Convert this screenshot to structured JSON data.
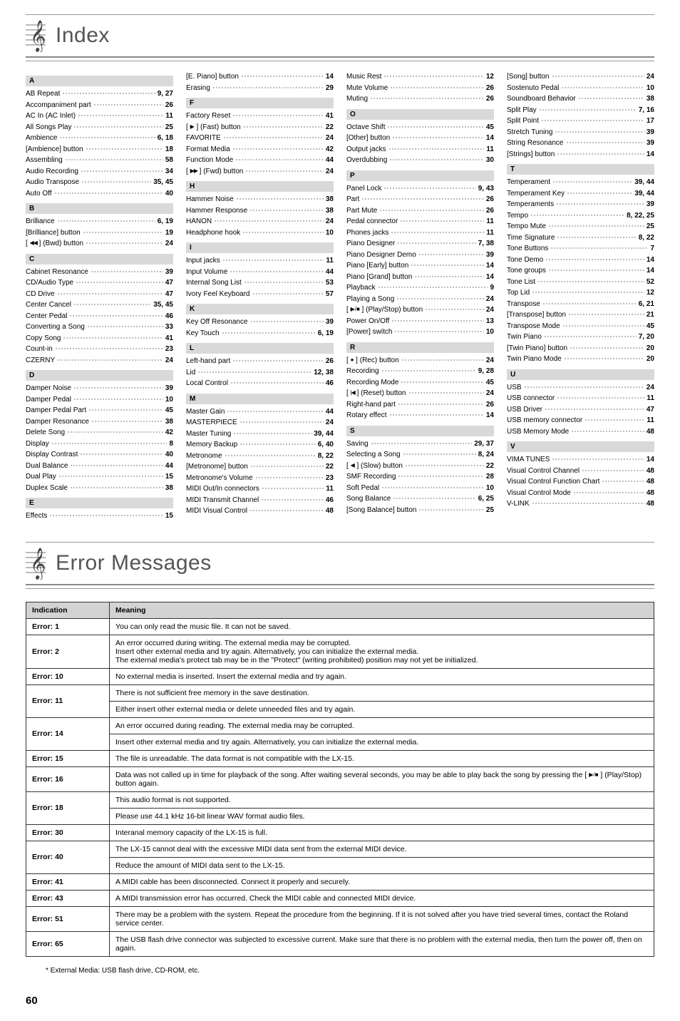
{
  "headings": {
    "index": "Index",
    "errors": "Error Messages"
  },
  "pageNumber": "60",
  "footnote": "*  External Media: USB flash drive, CD-ROM, etc.",
  "glyphs": {
    "tri_l": "◀",
    "tri_r": "▶",
    "rec": "●",
    "stop": "■",
    "bar": "|"
  },
  "index": [
    [
      {
        "type": "letter",
        "t": "A"
      },
      {
        "t": "AB Repeat",
        "p": "9, 27"
      },
      {
        "t": "Accompaniment part",
        "p": "26"
      },
      {
        "t": "AC In (AC Inlet)",
        "p": "11"
      },
      {
        "t": "All Songs Play",
        "p": "25"
      },
      {
        "t": "Ambience",
        "p": "6, 18"
      },
      {
        "t": "[Ambience] button",
        "p": "18"
      },
      {
        "t": "Assembling",
        "p": "58"
      },
      {
        "t": "Audio Recording",
        "p": "34"
      },
      {
        "t": "Audio Transpose",
        "p": "35, 45"
      },
      {
        "t": "Auto Off",
        "p": "40"
      },
      {
        "type": "letter",
        "t": "B"
      },
      {
        "t": "Brilliance",
        "p": "6, 19"
      },
      {
        "t": "[Brilliance] button",
        "p": "19"
      },
      {
        "html": "[ <span class='skip-l'></span> ] (Bwd) button",
        "p": "24"
      },
      {
        "type": "letter",
        "t": "C"
      },
      {
        "t": "Cabinet Resonance",
        "p": "39"
      },
      {
        "t": "CD/Audio Type",
        "p": "47"
      },
      {
        "t": "CD Drive",
        "p": "47"
      },
      {
        "t": "Center Cancel",
        "p": "35, 45"
      },
      {
        "t": "Center Pedal",
        "p": "46"
      },
      {
        "t": "Converting a Song",
        "p": "33"
      },
      {
        "t": "Copy Song",
        "p": "41"
      },
      {
        "t": "Count-in",
        "p": "23"
      },
      {
        "t": "CZERNY",
        "p": "24"
      },
      {
        "type": "letter",
        "t": "D"
      },
      {
        "t": "Damper Noise",
        "p": "39"
      },
      {
        "t": "Damper Pedal",
        "p": "10"
      },
      {
        "t": "Damper Pedal Part",
        "p": "45"
      },
      {
        "t": "Damper Resonance",
        "p": "38"
      },
      {
        "t": "Delete Song",
        "p": "42"
      },
      {
        "t": "Display",
        "p": "8"
      },
      {
        "t": "Display Contrast",
        "p": "40"
      },
      {
        "t": "Dual Balance",
        "p": "44"
      },
      {
        "t": "Dual Play",
        "p": "15"
      },
      {
        "t": "Duplex Scale",
        "p": "38"
      },
      {
        "type": "letter",
        "t": "E"
      },
      {
        "t": "Effects",
        "p": "15"
      }
    ],
    [
      {
        "t": "[E. Piano] button",
        "p": "14"
      },
      {
        "t": "Erasing",
        "p": "29"
      },
      {
        "type": "letter",
        "t": "F"
      },
      {
        "t": "Factory Reset",
        "p": "41"
      },
      {
        "html": "[ <span class='triangle-r'></span> ] (Fast) button",
        "p": "22"
      },
      {
        "t": "FAVORITE",
        "p": "24"
      },
      {
        "t": "Format Media",
        "p": "42"
      },
      {
        "t": "Function Mode",
        "p": "44"
      },
      {
        "html": "[ <span class='skip-r'></span> ] (Fwd) button",
        "p": "24"
      },
      {
        "type": "letter",
        "t": "H"
      },
      {
        "t": "Hammer Noise",
        "p": "38"
      },
      {
        "t": "Hammer Response",
        "p": "38"
      },
      {
        "t": "HANON",
        "p": "24"
      },
      {
        "t": "Headphone hook",
        "p": "10"
      },
      {
        "type": "letter",
        "t": "I"
      },
      {
        "t": "Input jacks",
        "p": "11"
      },
      {
        "t": "Input Volume",
        "p": "44"
      },
      {
        "t": "Internal Song List",
        "p": "53"
      },
      {
        "t": "Ivory Feel Keyboard",
        "p": "57"
      },
      {
        "type": "letter",
        "t": "K"
      },
      {
        "t": "Key Off Resonance",
        "p": "39"
      },
      {
        "t": "Key Touch",
        "p": "6, 19"
      },
      {
        "type": "letter",
        "t": "L"
      },
      {
        "t": "Left-hand part",
        "p": "26"
      },
      {
        "t": "Lid",
        "p": "12, 38"
      },
      {
        "t": "Local Control",
        "p": "46"
      },
      {
        "type": "letter",
        "t": "M"
      },
      {
        "t": "Master Gain",
        "p": "44"
      },
      {
        "t": "MASTERPIECE",
        "p": "24"
      },
      {
        "t": "Master Tuning",
        "p": "39, 44"
      },
      {
        "t": "Memory Backup",
        "p": "6, 40"
      },
      {
        "t": "Metronome",
        "p": "8, 22"
      },
      {
        "t": "[Metronome] button",
        "p": "22"
      },
      {
        "t": "Metronome's Volume",
        "p": "23"
      },
      {
        "t": "MIDI Out/In connectors",
        "p": "11"
      },
      {
        "t": "MIDI Transmit Channel",
        "p": "46"
      },
      {
        "t": "MIDI Visual Control",
        "p": "48"
      }
    ],
    [
      {
        "t": "Music Rest",
        "p": "12"
      },
      {
        "t": "Mute Volume",
        "p": "26"
      },
      {
        "t": "Muting",
        "p": "26"
      },
      {
        "type": "letter",
        "t": "O"
      },
      {
        "t": "Octave Shift",
        "p": "45"
      },
      {
        "t": "[Other] button",
        "p": "14"
      },
      {
        "t": "Output jacks",
        "p": "11"
      },
      {
        "t": "Overdubbing",
        "p": "30"
      },
      {
        "type": "letter",
        "t": "P"
      },
      {
        "t": "Panel Lock",
        "p": "9, 43"
      },
      {
        "t": "Part",
        "p": "26"
      },
      {
        "t": "Part Mute",
        "p": "26"
      },
      {
        "t": "Pedal connector",
        "p": "11"
      },
      {
        "t": "Phones jacks",
        "p": "11"
      },
      {
        "t": "Piano Designer",
        "p": "7, 38"
      },
      {
        "t": "Piano Designer Demo",
        "p": "39"
      },
      {
        "t": "Piano [Early] button",
        "p": "14"
      },
      {
        "t": "Piano [Grand] button",
        "p": "14"
      },
      {
        "t": "Playback",
        "p": "9"
      },
      {
        "t": "Playing a Song",
        "p": "24"
      },
      {
        "html": "[ <span class='playstop'></span> ] (Play/Stop) button",
        "p": "24"
      },
      {
        "t": "Power On/Off",
        "p": "13"
      },
      {
        "t": "[Power] switch",
        "p": "10"
      },
      {
        "type": "letter",
        "t": "R"
      },
      {
        "html": "[ <span class='rec'></span> ] (Rec) button",
        "p": "24"
      },
      {
        "t": "Recording",
        "p": "9, 28"
      },
      {
        "t": "Recording Mode",
        "p": "45"
      },
      {
        "html": "[ <span class='prev'></span> ] (Reset) button",
        "p": "24"
      },
      {
        "t": "Right-hand part",
        "p": "26"
      },
      {
        "t": "Rotary effect",
        "p": "14"
      },
      {
        "type": "letter",
        "t": "S"
      },
      {
        "t": "Saving",
        "p": "29, 37"
      },
      {
        "t": "Selecting a Song",
        "p": "8, 24"
      },
      {
        "html": "[ <span class='triangle-l'></span> ] (Slow) button",
        "p": "22"
      },
      {
        "t": "SMF Recording",
        "p": "28"
      },
      {
        "t": "Soft Pedal",
        "p": "10"
      },
      {
        "t": "Song Balance",
        "p": "6, 25"
      },
      {
        "t": "[Song Balance] button",
        "p": "25"
      }
    ],
    [
      {
        "t": "[Song] button",
        "p": "24"
      },
      {
        "t": "Sostenuto Pedal",
        "p": "10"
      },
      {
        "t": "Soundboard Behavior",
        "p": "38"
      },
      {
        "t": "Split Play",
        "p": "7, 16"
      },
      {
        "t": "Split Point",
        "p": "17"
      },
      {
        "t": "Stretch Tuning",
        "p": "39"
      },
      {
        "t": "String Resonance",
        "p": "39"
      },
      {
        "t": "[Strings] button",
        "p": "14"
      },
      {
        "type": "letter",
        "t": "T"
      },
      {
        "t": "Temperament",
        "p": "39, 44"
      },
      {
        "t": "Temperament Key",
        "p": "39, 44"
      },
      {
        "t": "Temperaments",
        "p": "39"
      },
      {
        "t": "Tempo",
        "p": "8, 22, 25"
      },
      {
        "t": "Tempo Mute",
        "p": "25"
      },
      {
        "t": "Time Signature",
        "p": "8, 22"
      },
      {
        "t": "Tone Buttons",
        "p": "7"
      },
      {
        "t": "Tone Demo",
        "p": "14"
      },
      {
        "t": "Tone groups",
        "p": "14"
      },
      {
        "t": "Tone List",
        "p": "52"
      },
      {
        "t": "Top Lid",
        "p": "12"
      },
      {
        "t": "Transpose",
        "p": "6, 21"
      },
      {
        "t": "[Transpose] button",
        "p": "21"
      },
      {
        "t": "Transpose Mode",
        "p": "45"
      },
      {
        "t": "Twin Piano",
        "p": "7, 20"
      },
      {
        "t": "[Twin Piano] button",
        "p": "20"
      },
      {
        "t": "Twin Piano Mode",
        "p": "20"
      },
      {
        "type": "letter",
        "t": "U"
      },
      {
        "t": "USB",
        "p": "24"
      },
      {
        "t": "USB connector",
        "p": "11"
      },
      {
        "t": "USB Driver",
        "p": "47"
      },
      {
        "t": "USB memory connector",
        "p": "11"
      },
      {
        "t": "USB Memory Mode",
        "p": "48"
      },
      {
        "type": "letter",
        "t": "V"
      },
      {
        "t": "VIMA TUNES",
        "p": "14"
      },
      {
        "t": "Visual Control Channel",
        "p": "48"
      },
      {
        "t": "Visual Control Function Chart",
        "p": "48"
      },
      {
        "t": "Visual Control Mode",
        "p": "48"
      },
      {
        "t": "V-LINK",
        "p": "48"
      }
    ]
  ],
  "errorHeaders": {
    "indication": "Indication",
    "meaning": "Meaning"
  },
  "errors": [
    {
      "i": "Error: 1",
      "m": "You can only read the music file. It can not be saved."
    },
    {
      "i": "Error: 2",
      "m": "An error occurred during writing. The external media may be corrupted.\nInsert other external media and try again. Alternatively, you can initialize the external media.\nThe external media's protect tab may be in the \"Protect\" (writing prohibited) position may not yet be initialized."
    },
    {
      "i": "Error: 10",
      "m": "No external media is inserted. Insert the external media and try again."
    },
    {
      "i": "Error: 11",
      "m": "There is not sufficient free memory in the save destination.\nEither insert other external media or delete unneeded files and try again.",
      "split": true
    },
    {
      "i": "Error: 14",
      "m": "An error occurred during reading. The external media may be corrupted.\nInsert other external media and try again. Alternatively, you can initialize the external media.",
      "split": true
    },
    {
      "i": "Error: 15",
      "m": "The file is unreadable. The data format is not compatible with the LX-15."
    },
    {
      "i": "Error: 16",
      "html": "Data was not called up in time for playback of the song. After waiting several seconds, you may be able to play back the song by pressing the [ <span class='playstop'></span> ] (Play/Stop) button again."
    },
    {
      "i": "Error: 18",
      "m": "This audio format is not supported.\nPlease use 44.1 kHz 16-bit linear WAV format audio files.",
      "split": true
    },
    {
      "i": "Error: 30",
      "m": "Interanal memory capacity of the LX-15 is full."
    },
    {
      "i": "Error: 40",
      "m": "The LX-15 cannot deal with the excessive MIDI data sent from the external MIDI device.\nReduce the amount of MIDI data sent to the LX-15.",
      "split": true
    },
    {
      "i": "Error: 41",
      "m": "A MIDI cable has been disconnected. Connect it properly and securely."
    },
    {
      "i": "Error: 43",
      "m": "A MIDI transmission error has occurred. Check the MIDI cable and connected MIDI device."
    },
    {
      "i": "Error: 51",
      "m": "There may be a problem with the system. Repeat the procedure from the beginning. If it is not solved after you have tried several times, contact the Roland service center."
    },
    {
      "i": "Error: 65",
      "m": "The USB flash drive connector was subjected to excessive current. Make sure that there is no problem with the external media, then turn the power off, then on again."
    }
  ]
}
